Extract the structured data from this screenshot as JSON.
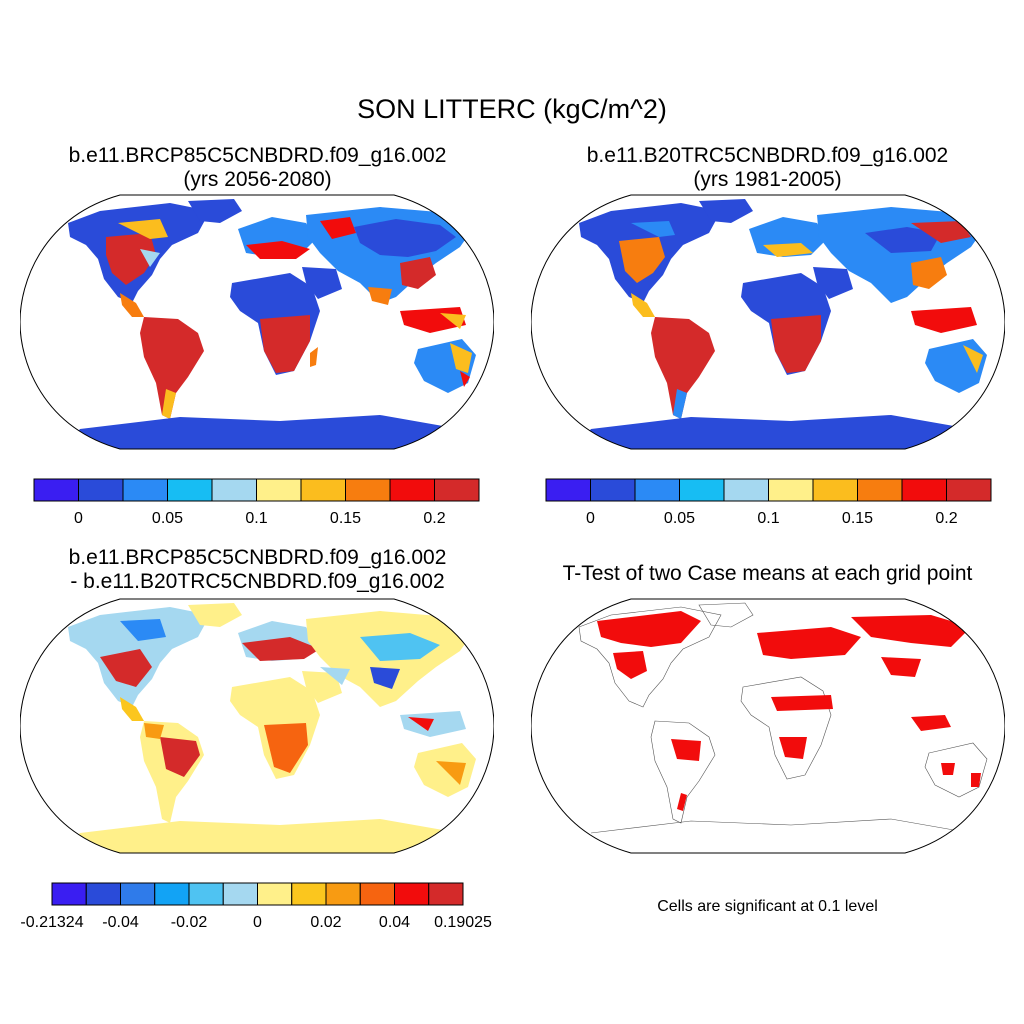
{
  "main_title": "SON LITTERC (kgC/m^2)",
  "panels": [
    {
      "title_line1": "b.e11.BRCP85C5CNBDRD.f09_g16.002",
      "title_line2": "(yrs 2056-2080)"
    },
    {
      "title_line1": "b.e11.B20TRC5CNBDRD.f09_g16.002",
      "title_line2": "(yrs 1981-2005)"
    },
    {
      "title_line1": "b.e11.BRCP85C5CNBDRD.f09_g16.002",
      "title_line2": "- b.e11.B20TRC5CNBDRD.f09_g16.002"
    },
    {
      "title_line1": "T-Test of two Case means at each grid point"
    }
  ],
  "significance_note": "Cells are significant at 0.1 level",
  "colorbar_abs": {
    "colors": [
      "#3a1ef2",
      "#2a4bd9",
      "#2b8af5",
      "#17bdf3",
      "#a5d8f0",
      "#fff08a",
      "#fbbd1e",
      "#f77d0f",
      "#f20c0c",
      "#d42a2a"
    ],
    "tick_labels": [
      "0",
      "0.05",
      "0.1",
      "0.15",
      "0.2"
    ],
    "tick_positions": [
      1,
      3,
      5,
      7,
      9
    ]
  },
  "colorbar_diff": {
    "colors": [
      "#3a1ef2",
      "#2a4bd9",
      "#2f7bea",
      "#12a3f5",
      "#4fc3f2",
      "#a5d8f0",
      "#fff08a",
      "#fbc61e",
      "#f89b12",
      "#f66410",
      "#f20c0c",
      "#d42a2a"
    ],
    "tick_labels": [
      "-0.21324",
      "-0.04",
      "-0.02",
      "0",
      "0.02",
      "0.04",
      "0.19025"
    ],
    "tick_positions": [
      0,
      2,
      4,
      6,
      8,
      10,
      12
    ]
  }
}
